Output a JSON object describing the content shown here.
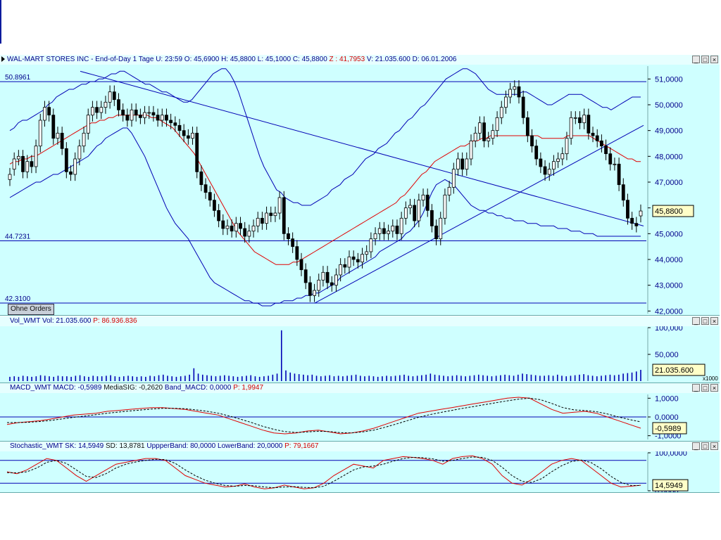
{
  "main_panel": {
    "header": {
      "symbol": "WAL-MART STORES INC",
      "timeframe": "- End-of-Day 1 Tage",
      "u": "U: 23:59",
      "o": "O: 45,6900",
      "h": "H: 45,8800",
      "l": "L: 45,1000",
      "c": "C: 45,8800",
      "z": "Z : 41,7953",
      "v": "V: 21.035.600",
      "d": "D: 06.01.2006"
    },
    "hline_labels": [
      "50.8961",
      "44.7231",
      "42.3100"
    ],
    "hline_values": [
      50.8961,
      44.7231,
      42.31
    ],
    "last_price_label": "45,8800",
    "orders_button": "Ohne Orders",
    "yticks": [
      "51,0000",
      "50,0000",
      "49,0000",
      "48,0000",
      "47,0000",
      "46,0000",
      "45,0000",
      "44,0000",
      "43,0000",
      "42,0000"
    ],
    "colors": {
      "up": "#ffffff",
      "down": "#000000",
      "bollinger": "#0000b4",
      "ma": "#e00000",
      "line": "#0000b4",
      "bg": "#cfffff"
    }
  },
  "volume_panel": {
    "header": {
      "name": "Vol_WMT",
      "vol": "Vol: 21.035.600",
      "p": "P: 86.936.836"
    },
    "yticks": [
      "100,000",
      "50,000"
    ],
    "last_label": "21.035.600",
    "scale_label": "x1000"
  },
  "macd_panel": {
    "header": {
      "name": "MACD_WMT",
      "macd": "MACD: -0,5989",
      "sig": "MediaSIG: -0,2620",
      "band": "Band_MACD: 0,0000",
      "p": "P: 1,9947"
    },
    "yticks": [
      "1,0000",
      "0,0000",
      "-1,0000"
    ],
    "last_label": "-0,5989"
  },
  "stoch_panel": {
    "header": {
      "name": "Stochastic_WMT",
      "sk": "SK: 14,5949",
      "sd": "SD: 13,8781",
      "upper": "UppperBand: 80,0000",
      "lower": "LowerBand: 20,0000",
      "p": "P: 79,1667"
    },
    "yticks": [
      "100,0000",
      "0,0000"
    ],
    "last_label": "14,5949"
  },
  "chart_data": [
    {
      "type": "candlestick",
      "title": "WAL-MART STORES INC",
      "ylim": [
        41.9,
        51.5
      ],
      "close": [
        47.3,
        47.9,
        48.0,
        47.4,
        47.8,
        47.6,
        48.4,
        49.4,
        49.9,
        49.6,
        48.7,
        48.9,
        48.3,
        47.4,
        47.3,
        47.9,
        48.4,
        48.9,
        49.6,
        49.9,
        49.7,
        49.9,
        50.1,
        50.5,
        50.2,
        49.8,
        49.6,
        49.4,
        49.8,
        49.6,
        49.5,
        49.7,
        49.7,
        49.6,
        49.4,
        49.6,
        49.4,
        49.3,
        49.2,
        49.0,
        48.8,
        48.7,
        48.9,
        47.4,
        46.9,
        46.6,
        46.3,
        45.9,
        45.5,
        45.2,
        45.3,
        45.1,
        45.4,
        45.2,
        44.9,
        45.1,
        45.3,
        45.6,
        45.4,
        45.8,
        45.7,
        45.8,
        46.4,
        45.0,
        44.8,
        44.5,
        44.0,
        43.6,
        43.1,
        42.6,
        42.8,
        43.2,
        43.5,
        43.1,
        43.0,
        43.4,
        43.8,
        43.7,
        44.1,
        44.0,
        43.9,
        44.2,
        44.3,
        44.8,
        45.0,
        45.2,
        45.0,
        45.1,
        45.3,
        45.0,
        45.6,
        46.0,
        46.1,
        45.5,
        46.3,
        46.5,
        45.9,
        45.3,
        44.8,
        45.6,
        46.5,
        46.8,
        47.5,
        47.9,
        47.5,
        47.9,
        48.6,
        48.9,
        49.3,
        48.6,
        48.7,
        49.0,
        49.5,
        49.9,
        50.3,
        50.6,
        50.7,
        50.3,
        49.5,
        48.8,
        48.4,
        47.9,
        47.6,
        47.3,
        47.5,
        47.8,
        47.9,
        48.1,
        48.7,
        49.5,
        49.5,
        49.3,
        49.6,
        48.9,
        48.8,
        48.6,
        48.4,
        48.1,
        47.7,
        47.7,
        46.9,
        46.3,
        45.6,
        45.4,
        45.3,
        45.88
      ],
      "open": [
        47.1,
        47.5,
        47.9,
        48.0,
        47.4,
        47.8,
        47.6,
        48.4,
        49.4,
        49.9,
        49.6,
        48.7,
        48.9,
        48.3,
        47.4,
        47.3,
        47.9,
        48.4,
        48.9,
        49.6,
        49.9,
        49.7,
        49.9,
        50.1,
        50.5,
        50.2,
        49.8,
        49.6,
        49.4,
        49.8,
        49.6,
        49.5,
        49.7,
        49.7,
        49.6,
        49.4,
        49.6,
        49.4,
        49.3,
        49.2,
        49.0,
        48.8,
        48.7,
        48.9,
        47.4,
        46.9,
        46.6,
        46.3,
        45.9,
        45.5,
        45.2,
        45.3,
        45.1,
        45.4,
        45.2,
        44.9,
        45.1,
        45.3,
        45.6,
        45.4,
        45.8,
        45.7,
        45.8,
        46.4,
        45.0,
        44.8,
        44.5,
        44.0,
        43.6,
        43.1,
        42.6,
        42.8,
        43.2,
        43.5,
        43.1,
        43.0,
        43.4,
        43.8,
        43.7,
        44.1,
        44.0,
        43.9,
        44.2,
        44.3,
        44.8,
        45.0,
        45.2,
        45.0,
        45.1,
        45.3,
        45.0,
        45.6,
        46.0,
        46.1,
        45.5,
        46.3,
        46.5,
        45.9,
        45.3,
        44.8,
        45.6,
        46.5,
        46.8,
        47.5,
        47.9,
        47.5,
        47.9,
        48.6,
        48.9,
        49.3,
        48.6,
        48.7,
        49.0,
        49.5,
        49.9,
        50.3,
        50.6,
        50.7,
        50.3,
        49.5,
        48.8,
        48.4,
        47.9,
        47.6,
        47.3,
        47.5,
        47.8,
        47.9,
        48.1,
        48.7,
        49.5,
        49.5,
        49.3,
        49.6,
        48.9,
        48.8,
        48.6,
        48.4,
        48.1,
        47.7,
        47.7,
        46.9,
        46.3,
        45.6,
        45.4,
        45.69
      ],
      "bb_upper": [
        49.0,
        49.1,
        49.3,
        49.4,
        49.4,
        49.5,
        49.6,
        49.7,
        49.8,
        50.0,
        50.1,
        50.3,
        50.4,
        50.5,
        50.6,
        50.6,
        50.7,
        50.8,
        50.8,
        50.9,
        50.9,
        51.0,
        51.0,
        51.1,
        51.2,
        51.2,
        51.3,
        51.3,
        51.2,
        51.1,
        51.0,
        50.9,
        50.8,
        50.8,
        50.7,
        50.6,
        50.5,
        50.5,
        50.4,
        50.3,
        50.2,
        50.1,
        50.1,
        50.2,
        50.4,
        50.6,
        50.8,
        51.0,
        51.2,
        51.3,
        51.4,
        51.4,
        51.2,
        50.9,
        50.5,
        50.0,
        49.5,
        49.0,
        48.5,
        48.0,
        47.6,
        47.3,
        47.0,
        46.7,
        46.6,
        46.4,
        46.3,
        46.2,
        46.2,
        46.1,
        46.1,
        46.1,
        46.2,
        46.3,
        46.4,
        46.5,
        46.7,
        46.8,
        46.9,
        47.1,
        47.2,
        47.3,
        47.5,
        47.7,
        47.9,
        48.0,
        48.1,
        48.3,
        48.4,
        48.5,
        48.7,
        48.9,
        49.0,
        49.2,
        49.4,
        49.5,
        49.7,
        49.9,
        50.0,
        50.2,
        50.4,
        50.6,
        50.8,
        51.0,
        51.1,
        51.2,
        51.3,
        51.4,
        51.4,
        51.3,
        51.2,
        51.0,
        50.8,
        50.6,
        50.5,
        50.4,
        50.4,
        50.4,
        50.4,
        50.4,
        50.4,
        50.5,
        50.5,
        50.4,
        50.3,
        50.2,
        50.1,
        50.0,
        50.0,
        50.1,
        50.2,
        50.3,
        50.4,
        50.4,
        50.4,
        50.4,
        50.3,
        50.2,
        50.1,
        50.0,
        49.9,
        49.9,
        49.8,
        49.9,
        50.0,
        50.1,
        50.2,
        50.3,
        50.3,
        50.3
      ],
      "bb_lower": [
        46.4,
        46.5,
        46.6,
        46.7,
        46.8,
        46.9,
        47.0,
        47.0,
        47.1,
        47.2,
        47.3,
        47.3,
        47.4,
        47.5,
        47.6,
        47.7,
        47.8,
        47.9,
        48.0,
        48.2,
        48.4,
        48.5,
        48.7,
        48.8,
        48.9,
        49.0,
        49.1,
        49.1,
        48.9,
        48.6,
        48.3,
        48.0,
        47.6,
        47.2,
        46.8,
        46.4,
        46.0,
        45.7,
        45.4,
        45.2,
        45.0,
        44.8,
        44.5,
        44.2,
        43.9,
        43.6,
        43.3,
        43.1,
        43.0,
        42.9,
        42.8,
        42.7,
        42.6,
        42.5,
        42.4,
        42.4,
        42.3,
        42.3,
        42.2,
        42.2,
        42.2,
        42.3,
        42.3,
        42.4,
        42.4,
        42.4,
        42.5,
        42.5,
        42.6,
        42.6,
        42.7,
        42.7,
        42.8,
        42.9,
        43.0,
        43.1,
        43.3,
        43.4,
        43.5,
        43.6,
        43.7,
        43.8,
        43.9,
        44.0,
        44.1,
        44.3,
        44.4,
        44.5,
        44.6,
        44.7,
        44.8,
        45.0,
        45.1,
        45.3,
        45.5,
        45.8,
        46.2,
        46.6,
        46.9,
        47.0,
        47.1,
        47.0,
        46.9,
        46.7,
        46.5,
        46.3,
        46.1,
        46.0,
        45.9,
        45.9,
        45.8,
        45.8,
        45.7,
        45.7,
        45.6,
        45.6,
        45.5,
        45.5,
        45.5,
        45.4,
        45.4,
        45.4,
        45.3,
        45.3,
        45.3,
        45.3,
        45.2,
        45.2,
        45.2,
        45.1,
        45.1,
        45.1,
        45.0,
        45.0,
        45.0,
        44.9,
        44.9,
        44.9,
        44.9,
        44.9,
        44.9,
        44.9,
        44.9,
        44.9,
        44.9,
        44.9
      ],
      "ma": [
        47.7,
        47.8,
        47.8,
        47.9,
        47.9,
        48.0,
        48.0,
        48.1,
        48.2,
        48.3,
        48.4,
        48.5,
        48.6,
        48.7,
        48.8,
        48.9,
        49.0,
        49.1,
        49.2,
        49.3,
        49.3,
        49.4,
        49.4,
        49.5,
        49.5,
        49.6,
        49.6,
        49.6,
        49.6,
        49.6,
        49.6,
        49.6,
        49.6,
        49.5,
        49.5,
        49.4,
        49.3,
        49.2,
        49.1,
        48.9,
        48.7,
        48.5,
        48.3,
        48.1,
        47.8,
        47.5,
        47.2,
        46.9,
        46.6,
        46.3,
        46.0,
        45.7,
        45.4,
        45.1,
        44.9,
        44.7,
        44.5,
        44.3,
        44.2,
        44.1,
        44.0,
        43.9,
        43.8,
        43.8,
        43.8,
        43.8,
        43.9,
        43.9,
        44.0,
        44.1,
        44.2,
        44.3,
        44.4,
        44.5,
        44.6,
        44.7,
        44.8,
        44.9,
        45.0,
        45.1,
        45.2,
        45.3,
        45.4,
        45.5,
        45.6,
        45.7,
        45.8,
        45.9,
        46.0,
        46.1,
        46.2,
        46.4,
        46.5,
        46.7,
        46.9,
        47.1,
        47.3,
        47.4,
        47.6,
        47.8,
        47.9,
        48.0,
        48.1,
        48.2,
        48.3,
        48.4,
        48.4,
        48.5,
        48.6,
        48.6,
        48.7,
        48.7,
        48.8,
        48.8,
        48.8,
        48.8,
        48.8,
        48.8,
        48.8,
        48.8,
        48.8,
        48.8,
        48.8,
        48.8,
        48.7,
        48.7,
        48.7,
        48.7,
        48.7,
        48.7,
        48.8,
        48.8,
        48.8,
        48.8,
        48.8,
        48.8,
        48.7,
        48.6,
        48.5,
        48.4,
        48.3,
        48.2,
        48.1,
        48.0,
        47.9,
        47.9,
        47.8,
        47.8
      ]
    },
    {
      "type": "bar",
      "title": "Vol_WMT",
      "values_x1000": [
        8,
        9,
        8,
        10,
        9,
        8,
        9,
        11,
        10,
        9,
        8,
        10,
        9,
        9,
        8,
        10,
        11,
        9,
        8,
        10,
        9,
        9,
        10,
        11,
        9,
        8,
        9,
        10,
        9,
        8,
        9,
        8,
        10,
        9,
        11,
        12,
        10,
        9,
        8,
        9,
        10,
        12,
        24,
        14,
        12,
        11,
        10,
        9,
        10,
        11,
        10,
        9,
        8,
        9,
        10,
        11,
        9,
        8,
        9,
        10,
        12,
        14,
        95,
        20,
        16,
        14,
        13,
        12,
        11,
        12,
        10,
        9,
        10,
        11,
        9,
        10,
        9,
        10,
        11,
        12,
        10,
        9,
        10,
        9,
        8,
        9,
        10,
        9,
        10,
        11,
        12,
        10,
        9,
        10,
        11,
        12,
        14,
        12,
        11,
        10,
        9,
        10,
        11,
        10,
        9,
        10,
        11,
        12,
        11,
        10,
        9,
        10,
        11,
        12,
        11,
        10,
        12,
        14,
        13,
        12,
        11,
        10,
        10,
        11,
        10,
        12,
        10,
        9,
        10,
        11,
        12,
        13,
        11,
        10,
        9,
        10,
        11,
        12,
        11,
        12,
        14,
        15,
        16,
        18,
        21.0356
      ],
      "ylim": [
        0,
        100
      ]
    },
    {
      "type": "line",
      "title": "MACD_WMT",
      "ylim": [
        -1.2,
        1.2
      ],
      "series": [
        {
          "name": "MACD",
          "values": [
            -0.4,
            -0.3,
            -0.25,
            -0.2,
            -0.1,
            0.0,
            0.1,
            0.15,
            0.2,
            0.3,
            0.35,
            0.4,
            0.45,
            0.5,
            0.5,
            0.45,
            0.4,
            0.3,
            0.2,
            0.1,
            -0.1,
            -0.3,
            -0.5,
            -0.7,
            -0.85,
            -0.9,
            -0.85,
            -0.75,
            -0.7,
            -0.8,
            -0.9,
            -0.85,
            -0.75,
            -0.6,
            -0.4,
            -0.2,
            0.0,
            0.2,
            0.3,
            0.4,
            0.5,
            0.6,
            0.7,
            0.8,
            0.9,
            1.0,
            1.05,
            1.0,
            0.7,
            0.4,
            0.2,
            0.25,
            0.3,
            0.2,
            0.0,
            -0.2,
            -0.4,
            -0.5989
          ]
        },
        {
          "name": "MediaSIG",
          "values": [
            -0.3,
            -0.3,
            -0.28,
            -0.24,
            -0.18,
            -0.1,
            -0.02,
            0.05,
            0.12,
            0.2,
            0.26,
            0.32,
            0.37,
            0.42,
            0.46,
            0.46,
            0.44,
            0.38,
            0.3,
            0.2,
            0.05,
            -0.12,
            -0.3,
            -0.5,
            -0.66,
            -0.78,
            -0.83,
            -0.8,
            -0.76,
            -0.78,
            -0.84,
            -0.85,
            -0.8,
            -0.7,
            -0.55,
            -0.38,
            -0.2,
            -0.02,
            0.12,
            0.24,
            0.35,
            0.46,
            0.56,
            0.66,
            0.76,
            0.86,
            0.95,
            1.0,
            0.92,
            0.72,
            0.5,
            0.38,
            0.34,
            0.28,
            0.16,
            0.0,
            -0.14,
            -0.262
          ]
        }
      ]
    },
    {
      "type": "line",
      "title": "Stochastic_WMT",
      "ylim": [
        0,
        100
      ],
      "series": [
        {
          "name": "SK",
          "values": [
            50,
            45,
            55,
            70,
            85,
            80,
            60,
            40,
            25,
            40,
            55,
            70,
            75,
            80,
            85,
            85,
            80,
            60,
            40,
            30,
            20,
            15,
            10,
            12,
            18,
            10,
            5,
            8,
            15,
            10,
            5,
            8,
            20,
            40,
            55,
            70,
            65,
            60,
            80,
            85,
            90,
            88,
            85,
            80,
            70,
            85,
            90,
            92,
            85,
            70,
            40,
            20,
            15,
            30,
            50,
            70,
            80,
            85,
            80,
            60,
            40,
            20,
            10,
            12,
            14.5949
          ]
        },
        {
          "name": "SD",
          "values": [
            48,
            47,
            50,
            60,
            75,
            80,
            72,
            55,
            38,
            35,
            45,
            60,
            70,
            76,
            80,
            83,
            82,
            72,
            55,
            40,
            28,
            20,
            14,
            12,
            14,
            13,
            10,
            8,
            10,
            11,
            9,
            8,
            12,
            25,
            40,
            55,
            63,
            65,
            70,
            78,
            85,
            88,
            87,
            84,
            78,
            80,
            85,
            89,
            88,
            80,
            62,
            40,
            25,
            22,
            32,
            50,
            66,
            77,
            81,
            74,
            58,
            38,
            22,
            14,
            13.8781
          ]
        }
      ],
      "upper_band": 80,
      "lower_band": 20
    }
  ]
}
